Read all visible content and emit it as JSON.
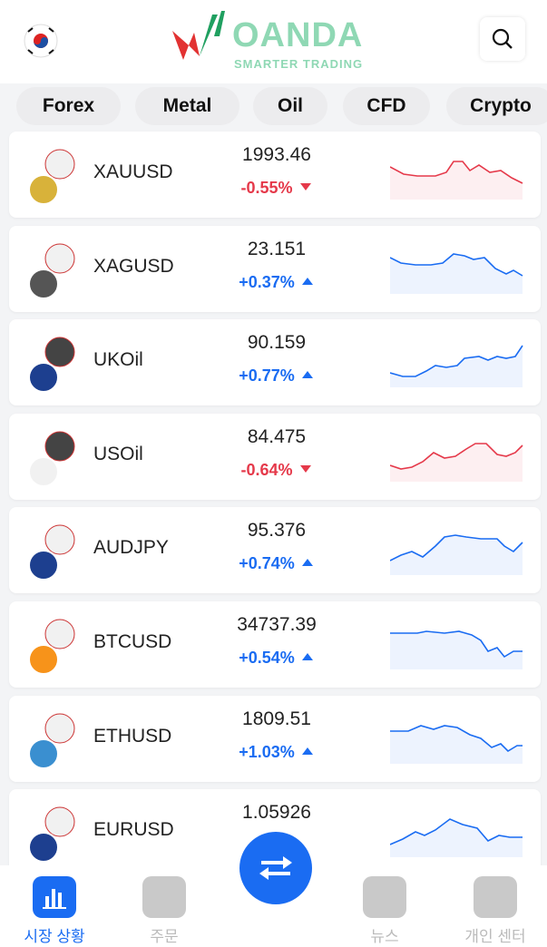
{
  "header": {
    "logo": "OANDA",
    "tagline": "SMARTER TRADING"
  },
  "tabs": [
    "Forex",
    "Metal",
    "Oil",
    "CFD",
    "Crypto"
  ],
  "rows": [
    {
      "symbol": "XAUUSD",
      "price": "1993.46",
      "change": "-0.55%"
    },
    {
      "symbol": "XAGUSD",
      "price": "23.151",
      "change": "+0.37%"
    },
    {
      "symbol": "UKOil",
      "price": "90.159",
      "change": "+0.77%"
    },
    {
      "symbol": "USOil",
      "price": "84.475",
      "change": "-0.64%"
    },
    {
      "symbol": "AUDJPY",
      "price": "95.376",
      "change": "+0.74%"
    },
    {
      "symbol": "BTCUSD",
      "price": "34737.39",
      "change": "+0.54%"
    },
    {
      "symbol": "ETHUSD",
      "price": "1809.51",
      "change": "+1.03%"
    },
    {
      "symbol": "EURUSD",
      "price": "1.05926"
    }
  ],
  "nav": [
    "시장 상황",
    "주문",
    "뉴스",
    "개인 센터"
  ]
}
